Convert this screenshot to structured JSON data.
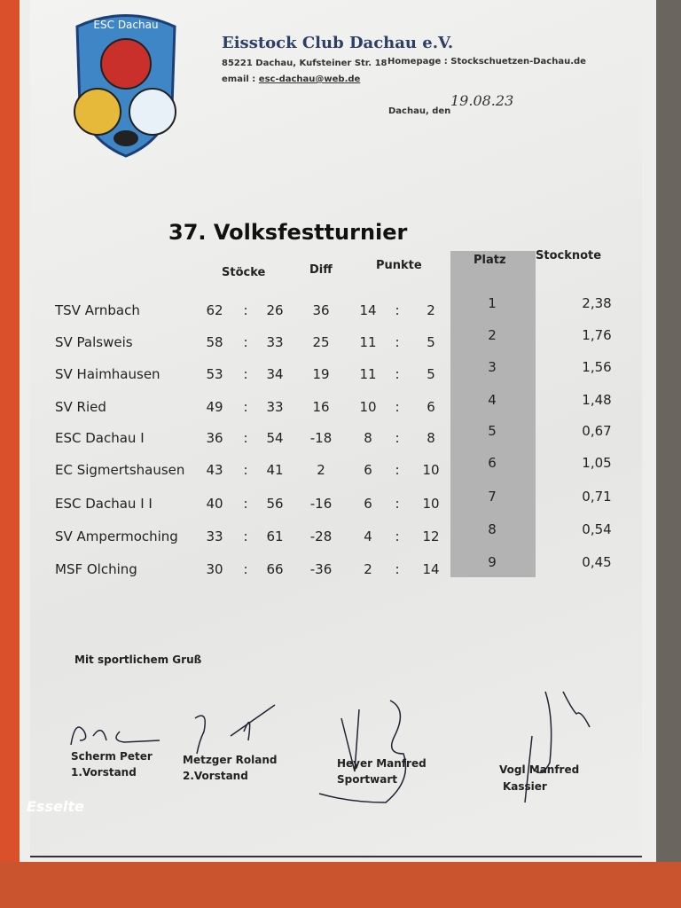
{
  "letterhead": {
    "logo_text": "ESC Dachau",
    "club_name": "Eisstock Club  Dachau e.V.",
    "address": "85221 Dachau,  Kufsteiner  Str. 18",
    "email_label": "email :",
    "email": "esc-dachau@web.de",
    "homepage_label": "Homepage :",
    "homepage": "Stockschuetzen-Dachau.de",
    "date_label": "Dachau,  den",
    "date": "19.08.23"
  },
  "title": "37. Volksfestturnier",
  "headers": {
    "stoecke": "Stöcke",
    "diff": "Diff",
    "punkte": "Punkte",
    "platz": "Platz",
    "stocknote": "Stocknote"
  },
  "rows": [
    {
      "team": "TSV Arnbach",
      "s_for": "62",
      "s_against": "26",
      "diff": "36",
      "p_for": "14",
      "p_against": "2",
      "platz": "1",
      "note": "2,38"
    },
    {
      "team": "SV Palsweis",
      "s_for": "58",
      "s_against": "33",
      "diff": "25",
      "p_for": "11",
      "p_against": "5",
      "platz": "2",
      "note": "1,76"
    },
    {
      "team": "SV Haimhausen",
      "s_for": "53",
      "s_against": "34",
      "diff": "19",
      "p_for": "11",
      "p_against": "5",
      "platz": "3",
      "note": "1,56"
    },
    {
      "team": "SV Ried",
      "s_for": "49",
      "s_against": "33",
      "diff": "16",
      "p_for": "10",
      "p_against": "6",
      "platz": "4",
      "note": "1,48"
    },
    {
      "team": "ESC Dachau I",
      "s_for": "36",
      "s_against": "54",
      "diff": "-18",
      "p_for": "8",
      "p_against": "8",
      "platz": "5",
      "note": "0,67"
    },
    {
      "team": "EC Sigmertshausen",
      "s_for": "43",
      "s_against": "41",
      "diff": "2",
      "p_for": "6",
      "p_against": "10",
      "platz": "6",
      "note": "1,05"
    },
    {
      "team": "ESC  Dachau  I I",
      "s_for": "40",
      "s_against": "56",
      "diff": "-16",
      "p_for": "6",
      "p_against": "10",
      "platz": "7",
      "note": "0,71"
    },
    {
      "team": "SV Ampermoching",
      "s_for": "33",
      "s_against": "61",
      "diff": "-28",
      "p_for": "4",
      "p_against": "12",
      "platz": "8",
      "note": "0,54"
    },
    {
      "team": "MSF Olching",
      "s_for": "30",
      "s_against": "66",
      "diff": "-36",
      "p_for": "2",
      "p_against": "14",
      "platz": "9",
      "note": "0,45"
    }
  ],
  "colon": ":",
  "closing": "Mit sportlichem Gruß",
  "signatories": [
    {
      "name": "Scherm  Peter",
      "role": "1.Vorstand"
    },
    {
      "name": "Metzger  Roland",
      "role": "2.Vorstand"
    },
    {
      "name": "Heyer  Manfred",
      "role": "Sportwart"
    },
    {
      "name": "Vogl  Manfred",
      "role": "Kassier"
    }
  ],
  "folder_brand": "Esselte"
}
